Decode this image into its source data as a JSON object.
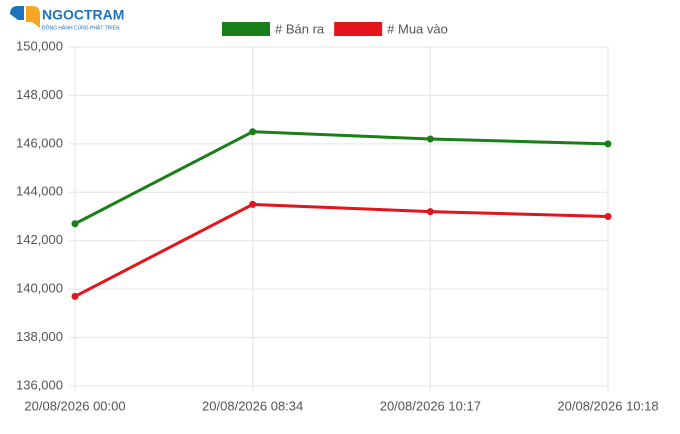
{
  "logo": {
    "name": "NGOCTRAM",
    "tagline": "ĐỒNG HÀNH CÙNG PHÁT TRIỂN"
  },
  "chart_data": {
    "type": "line",
    "categories": [
      "20/08/2026 00:00",
      "20/08/2026 08:34",
      "20/08/2026 10:17",
      "20/08/2026 10:18"
    ],
    "series": [
      {
        "name": "# Bán ra",
        "color": "#1a7f1a",
        "values": [
          142700,
          146500,
          146200,
          146000
        ]
      },
      {
        "name": "# Mua vào",
        "color": "#e3141b",
        "values": [
          139700,
          143500,
          143200,
          143000
        ]
      }
    ],
    "ylim": [
      136000,
      150000
    ],
    "yticks": [
      {
        "value": 136000,
        "label": "136,000"
      },
      {
        "value": 138000,
        "label": "138,000"
      },
      {
        "value": 140000,
        "label": "140,000"
      },
      {
        "value": 142000,
        "label": "142,000"
      },
      {
        "value": 144000,
        "label": "144,000"
      },
      {
        "value": 146000,
        "label": "146,000"
      },
      {
        "value": 148000,
        "label": "148,000"
      },
      {
        "value": 150000,
        "label": "150,000"
      }
    ],
    "grid": true,
    "legend": "top"
  }
}
